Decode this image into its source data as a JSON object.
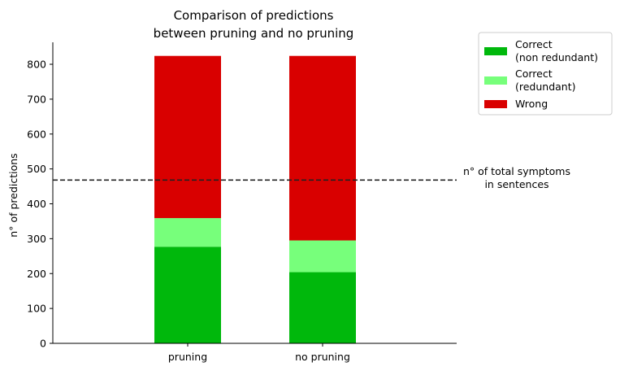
{
  "chart_data": {
    "type": "bar",
    "stacked": true,
    "title_lines": [
      "Comparison of predictions",
      "between pruning and no pruning"
    ],
    "xlabel": "",
    "ylabel": "n° of predictions",
    "categories": [
      "pruning",
      "no pruning"
    ],
    "series": [
      {
        "name": "Correct\n(non redundant)",
        "values": [
          277,
          204
        ],
        "color": "#00b80c"
      },
      {
        "name": "Correct\n(redundant)",
        "values": [
          82,
          91
        ],
        "color": "#77ff7b"
      },
      {
        "name": "Wrong",
        "values": [
          465,
          529
        ],
        "color": "#d90000"
      }
    ],
    "ylim": [
      0,
      860
    ],
    "yticks": [
      0,
      100,
      200,
      300,
      400,
      500,
      600,
      700,
      800
    ],
    "hline": {
      "value": 468,
      "style": "dashed",
      "color": "#222222",
      "label_lines": [
        "n° of total symptoms",
        "in sentences"
      ]
    },
    "legend_position": "outside-top-right",
    "grid": false
  }
}
